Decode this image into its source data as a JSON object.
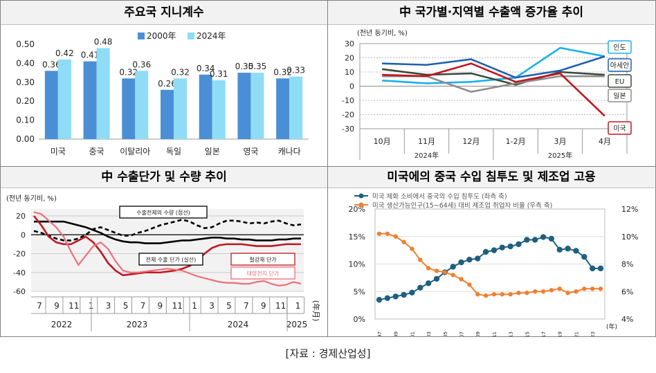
{
  "titles": {
    "p1": "주요국 지니계수",
    "p2": "中 국가별·지역별 수출액 증가율 추이",
    "p3": "中 수출단가 및 수량 추이",
    "p4": "미국에의 중국 수입 침투도 및 제조업 고용"
  },
  "source": "[자료 : 경제산업성]",
  "colors": {
    "c2000": "#4a8fd6",
    "c2024": "#8fdcf6"
  },
  "chart_data": [
    {
      "type": "bar",
      "title": "주요국 지니계수",
      "categories": [
        "미국",
        "중국",
        "이탈리아",
        "독일",
        "일본",
        "영국",
        "캐나다"
      ],
      "series": [
        {
          "name": "2000年",
          "values": [
            0.36,
            0.41,
            0.32,
            0.26,
            0.34,
            0.35,
            0.32
          ]
        },
        {
          "name": "2024年",
          "values": [
            0.42,
            0.48,
            0.36,
            0.32,
            0.31,
            0.35,
            0.33
          ]
        }
      ],
      "yticks": [
        "0.00",
        "0.10",
        "0.20",
        "0.30",
        "0.40",
        "0.50"
      ],
      "ylim": [
        0,
        0.5
      ],
      "legend": "top-center"
    },
    {
      "type": "line",
      "title": "中 국가별·지역별 수출액 증가율 추이",
      "unit_label": "(전년 동기비, %)",
      "categories": [
        "10月",
        "11月",
        "12月",
        "1-2月",
        "3月",
        "4月"
      ],
      "groups": [
        "2024年",
        "2025年"
      ],
      "ylim": [
        -30,
        30
      ],
      "yticks": [
        "30",
        "20",
        "10",
        "0",
        "-10",
        "-20",
        "-30"
      ],
      "series": [
        {
          "name": "인도",
          "color": "#1ab0e8",
          "values": [
            4,
            2,
            3,
            6,
            27,
            21
          ]
        },
        {
          "name": "아세안",
          "color": "#1f5fb0",
          "values": [
            16,
            15,
            19,
            6,
            11,
            21
          ]
        },
        {
          "name": "EU",
          "color": "#3a4a3a",
          "values": [
            12,
            8,
            9,
            1,
            10,
            8
          ]
        },
        {
          "name": "일본",
          "color": "#8c8c8c",
          "values": [
            7,
            7,
            -4,
            2,
            7,
            7
          ]
        },
        {
          "name": "미국",
          "color": "#c0161e",
          "values": [
            8,
            7,
            16,
            3,
            9,
            -21
          ]
        }
      ]
    },
    {
      "type": "line",
      "title": "中 수출단가 및 수량 추이",
      "unit_label": "(전년 동기비, %)",
      "ylim": [
        -60,
        20
      ],
      "yticks": [
        "20",
        "0",
        "-20",
        "-40",
        "-60"
      ],
      "xticks": [
        "7",
        "9",
        "11",
        "1",
        "3",
        "5",
        "7",
        "9",
        "11",
        "1",
        "3",
        "5",
        "7",
        "9",
        "11",
        "1"
      ],
      "xunit": "(年月)",
      "years": [
        "2022",
        "2023",
        "2024",
        "2025"
      ],
      "series": [
        {
          "name": "수출전체의 수량 (점선)",
          "color": "#000000",
          "dash": true,
          "values": [
            4,
            2,
            -1,
            -4,
            -6,
            -6,
            -4,
            0,
            6,
            8,
            5,
            2,
            -1,
            -1,
            2,
            4,
            7,
            10,
            12,
            14,
            16,
            14,
            10,
            7,
            8,
            12,
            15,
            15,
            14,
            12,
            13,
            12,
            14,
            15,
            12,
            10,
            11
          ]
        },
        {
          "name": "전체 수출 단가 (실선)",
          "color": "#000000",
          "values": [
            14,
            14,
            14,
            14,
            14,
            12,
            10,
            8,
            5,
            2,
            -2,
            -5,
            -7,
            -8,
            -8,
            -9,
            -9,
            -9,
            -8,
            -7,
            -6,
            -6,
            -5,
            -4,
            -3,
            -3,
            -4,
            -4,
            -5,
            -5,
            -6,
            -6,
            -6,
            -5,
            -5,
            -4,
            -4
          ]
        },
        {
          "name": "철강재 단가",
          "color": "#c0161e",
          "values": [
            20,
            10,
            -2,
            -8,
            -10,
            -10,
            -6,
            -2,
            -8,
            -18,
            -30,
            -38,
            -43,
            -42,
            -41,
            -40,
            -40,
            -40,
            -39,
            -38,
            -36,
            -33,
            -28,
            -20,
            -14,
            -11,
            -10,
            -10,
            -10,
            -11,
            -12,
            -12,
            -12,
            -11,
            -10,
            -10,
            -10
          ]
        },
        {
          "name": "태양전지 단가",
          "color": "#ee6e7b",
          "values": [
            24,
            22,
            15,
            8,
            -2,
            -18,
            -32,
            -22,
            -12,
            -8,
            -15,
            -28,
            -38,
            -40,
            -40,
            -39,
            -38,
            -37,
            -36,
            -37,
            -38,
            -41,
            -44,
            -46,
            -48,
            -50,
            -51,
            -51,
            -52,
            -52,
            -50,
            -49,
            -52,
            -54,
            -53,
            -50,
            -52
          ]
        }
      ]
    },
    {
      "type": "line",
      "title": "미국에의 중국 수입 침투도 및 제조업 고용",
      "x": [
        "1997",
        "1998",
        "1999",
        "2000",
        "2001",
        "2002",
        "2003",
        "2004",
        "2005",
        "2006",
        "2007",
        "2008",
        "2009",
        "2010",
        "2011",
        "2012",
        "2013",
        "2014",
        "2015",
        "2016",
        "2017",
        "2018",
        "2019",
        "2020",
        "2021",
        "2022",
        "2023",
        "2024"
      ],
      "xticks": [
        "1997",
        "1999",
        "2001",
        "2003",
        "2005",
        "2007",
        "2009",
        "2011",
        "2013",
        "2015",
        "2017",
        "2019",
        "2021",
        "2023"
      ],
      "xunit": "(年)",
      "left_axis": {
        "ticks": [
          "20%",
          "15%",
          "10%",
          "5%",
          "0%"
        ],
        "ylim": [
          0,
          20
        ]
      },
      "right_axis": {
        "ticks": [
          "12%",
          "10%",
          "8%",
          "6%",
          "4%"
        ],
        "ylim": [
          4,
          12
        ]
      },
      "series": [
        {
          "name": "미국 제화 소비에서 중국의 수입 침투도 (좌측 축)",
          "axis": "left",
          "color": "#1f5f7f",
          "values": [
            3.5,
            3.8,
            4.1,
            4.4,
            4.8,
            5.7,
            6.5,
            7.3,
            8.5,
            9.5,
            10.3,
            10.8,
            11.0,
            12.2,
            12.5,
            13.0,
            13.2,
            13.6,
            14.4,
            14.4,
            14.9,
            14.6,
            12.6,
            12.8,
            12.4,
            11.3,
            9.2,
            9.2
          ]
        },
        {
          "name": "미국 생산가능인구(15~64세) 대비 제조업 취업자 비율 (우측 축)",
          "axis": "right",
          "color": "#f08030",
          "values": [
            10.2,
            10.2,
            10.0,
            9.6,
            9.1,
            8.3,
            7.7,
            7.5,
            7.4,
            7.2,
            6.9,
            6.5,
            5.8,
            5.7,
            5.8,
            5.8,
            5.8,
            5.9,
            5.9,
            6.0,
            6.0,
            6.1,
            6.2,
            5.9,
            6.0,
            6.2,
            6.2,
            6.2
          ]
        }
      ]
    }
  ]
}
